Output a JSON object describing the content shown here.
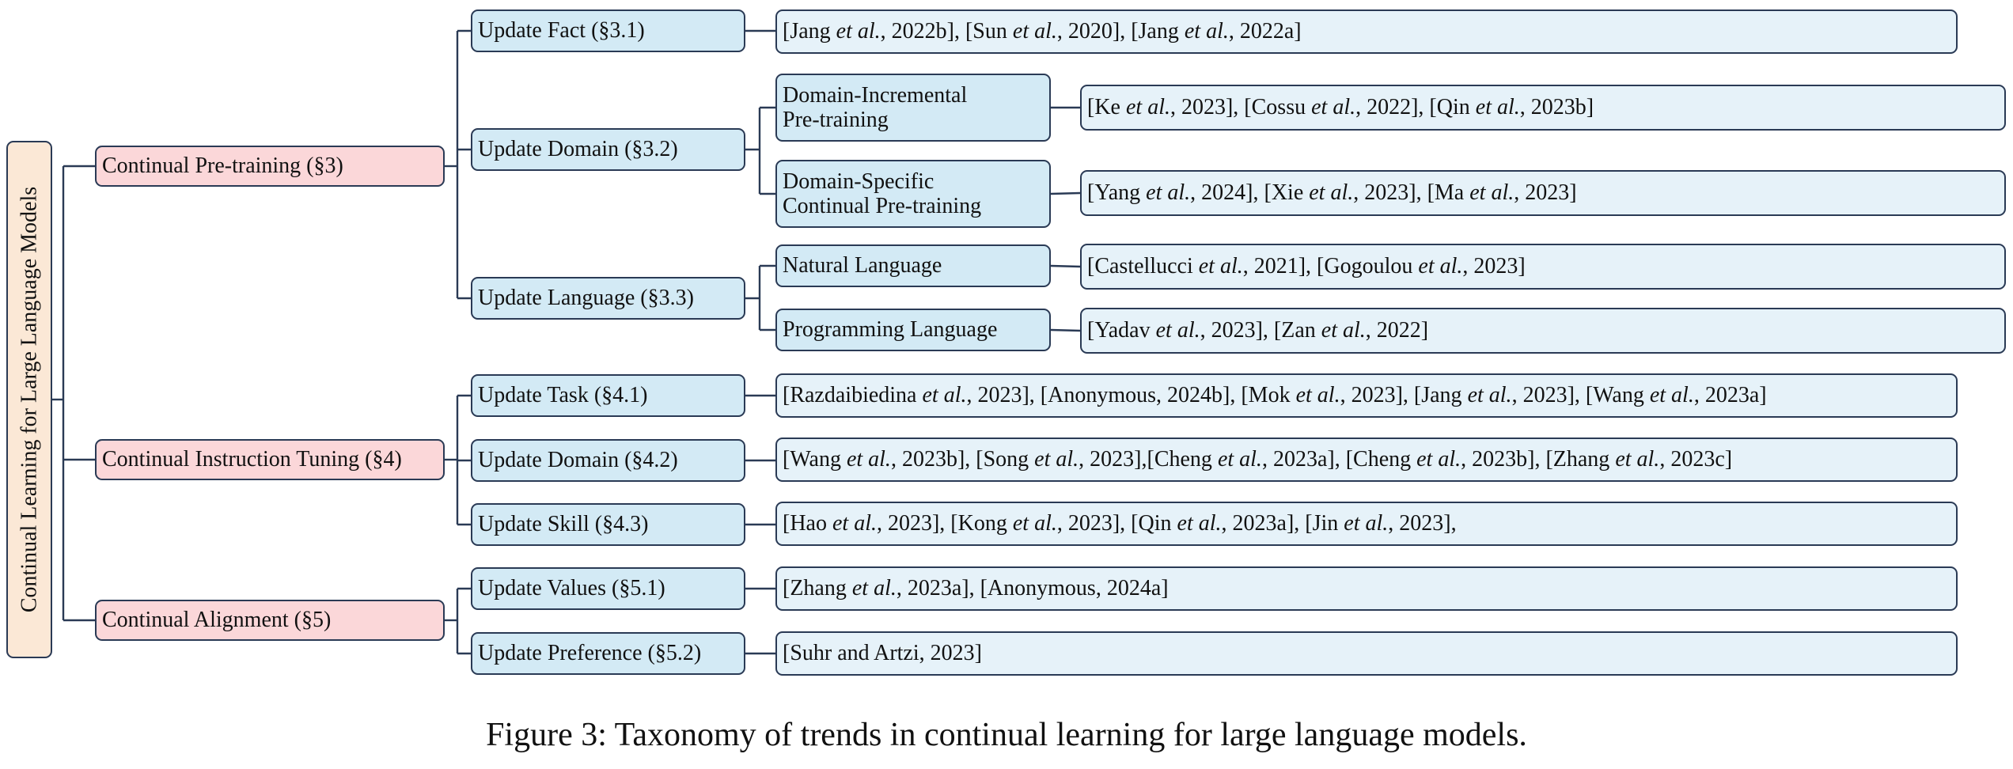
{
  "root": {
    "label": "Continual Learning for Large Language Models"
  },
  "level1": [
    {
      "label": "Continual Pre-training (§3)"
    },
    {
      "label": "Continual Instruction Tuning (§4)"
    },
    {
      "label": "Continual Alignment (§5)"
    }
  ],
  "level2": [
    {
      "label": "Update Fact (§3.1)"
    },
    {
      "label": "Update Domain (§3.2)"
    },
    {
      "label": "Update Language (§3.3)"
    },
    {
      "label": "Update Task (§4.1)"
    },
    {
      "label": "Update Domain (§4.2)"
    },
    {
      "label": "Update Skill (§4.3)"
    },
    {
      "label": "Update Values (§5.1)"
    },
    {
      "label": "Update Preference (§5.2)"
    }
  ],
  "level3": [
    {
      "line1": "Domain-Incremental",
      "line2": "Pre-training"
    },
    {
      "line1": "Domain-Specific",
      "line2": "Continual Pre-training"
    },
    {
      "label": "Natural Language"
    },
    {
      "label": "Programming Language"
    }
  ],
  "leaves": [
    {
      "refs": [
        [
          "Jang ",
          "et al.",
          ", 2022b]"
        ],
        [
          "[Sun ",
          "et al.",
          ", 2020]"
        ],
        [
          "[Jang ",
          "et al.",
          ", 2022a]"
        ]
      ],
      "prefix": "[",
      "sep": ", "
    },
    {
      "refs": [
        [
          "Ke ",
          "et al.",
          ", 2023]"
        ],
        [
          "[Cossu ",
          "et al.",
          ", 2022]"
        ],
        [
          "[Qin ",
          "et al.",
          ", 2023b]"
        ]
      ],
      "prefix": "[",
      "sep": ", "
    },
    {
      "refs": [
        [
          "Yang ",
          "et al.",
          ", 2024]"
        ],
        [
          "[Xie ",
          "et al.",
          ", 2023]"
        ],
        [
          "[Ma ",
          "et al.",
          ", 2023]"
        ]
      ],
      "prefix": "[",
      "sep": ", "
    },
    {
      "refs": [
        [
          "Castellucci ",
          "et al.",
          ", 2021]"
        ],
        [
          "[Gogoulou ",
          "et al.",
          ", 2023]"
        ]
      ],
      "prefix": "[",
      "sep": ", "
    },
    {
      "refs": [
        [
          "Yadav ",
          "et al.",
          ", 2023]"
        ],
        [
          "[Zan ",
          "et al.",
          ", 2022]"
        ]
      ],
      "prefix": "[",
      "sep": ", "
    },
    {
      "text": "[Razdaibiedina et al., 2023], [Anonymous, 2024b], [Mok et al., 2023], [Jang et al., 2023], [Wang et al., 2023a]"
    },
    {
      "text": "[Wang et al., 2023b], [Song et al., 2023],[Cheng et al., 2023a], [Cheng et al., 2023b], [Zhang et al., 2023c]"
    },
    {
      "text": "[Hao et al., 2023], [Kong et al., 2023], [Qin et al., 2023a], [Jin et al., 2023],"
    },
    {
      "text": "[Zhang et al., 2023a], [Anonymous, 2024a]"
    },
    {
      "text": "[Suhr and Artzi, 2023]"
    }
  ],
  "caption": "Figure 3: Taxonomy of trends in continual learning for large language models."
}
